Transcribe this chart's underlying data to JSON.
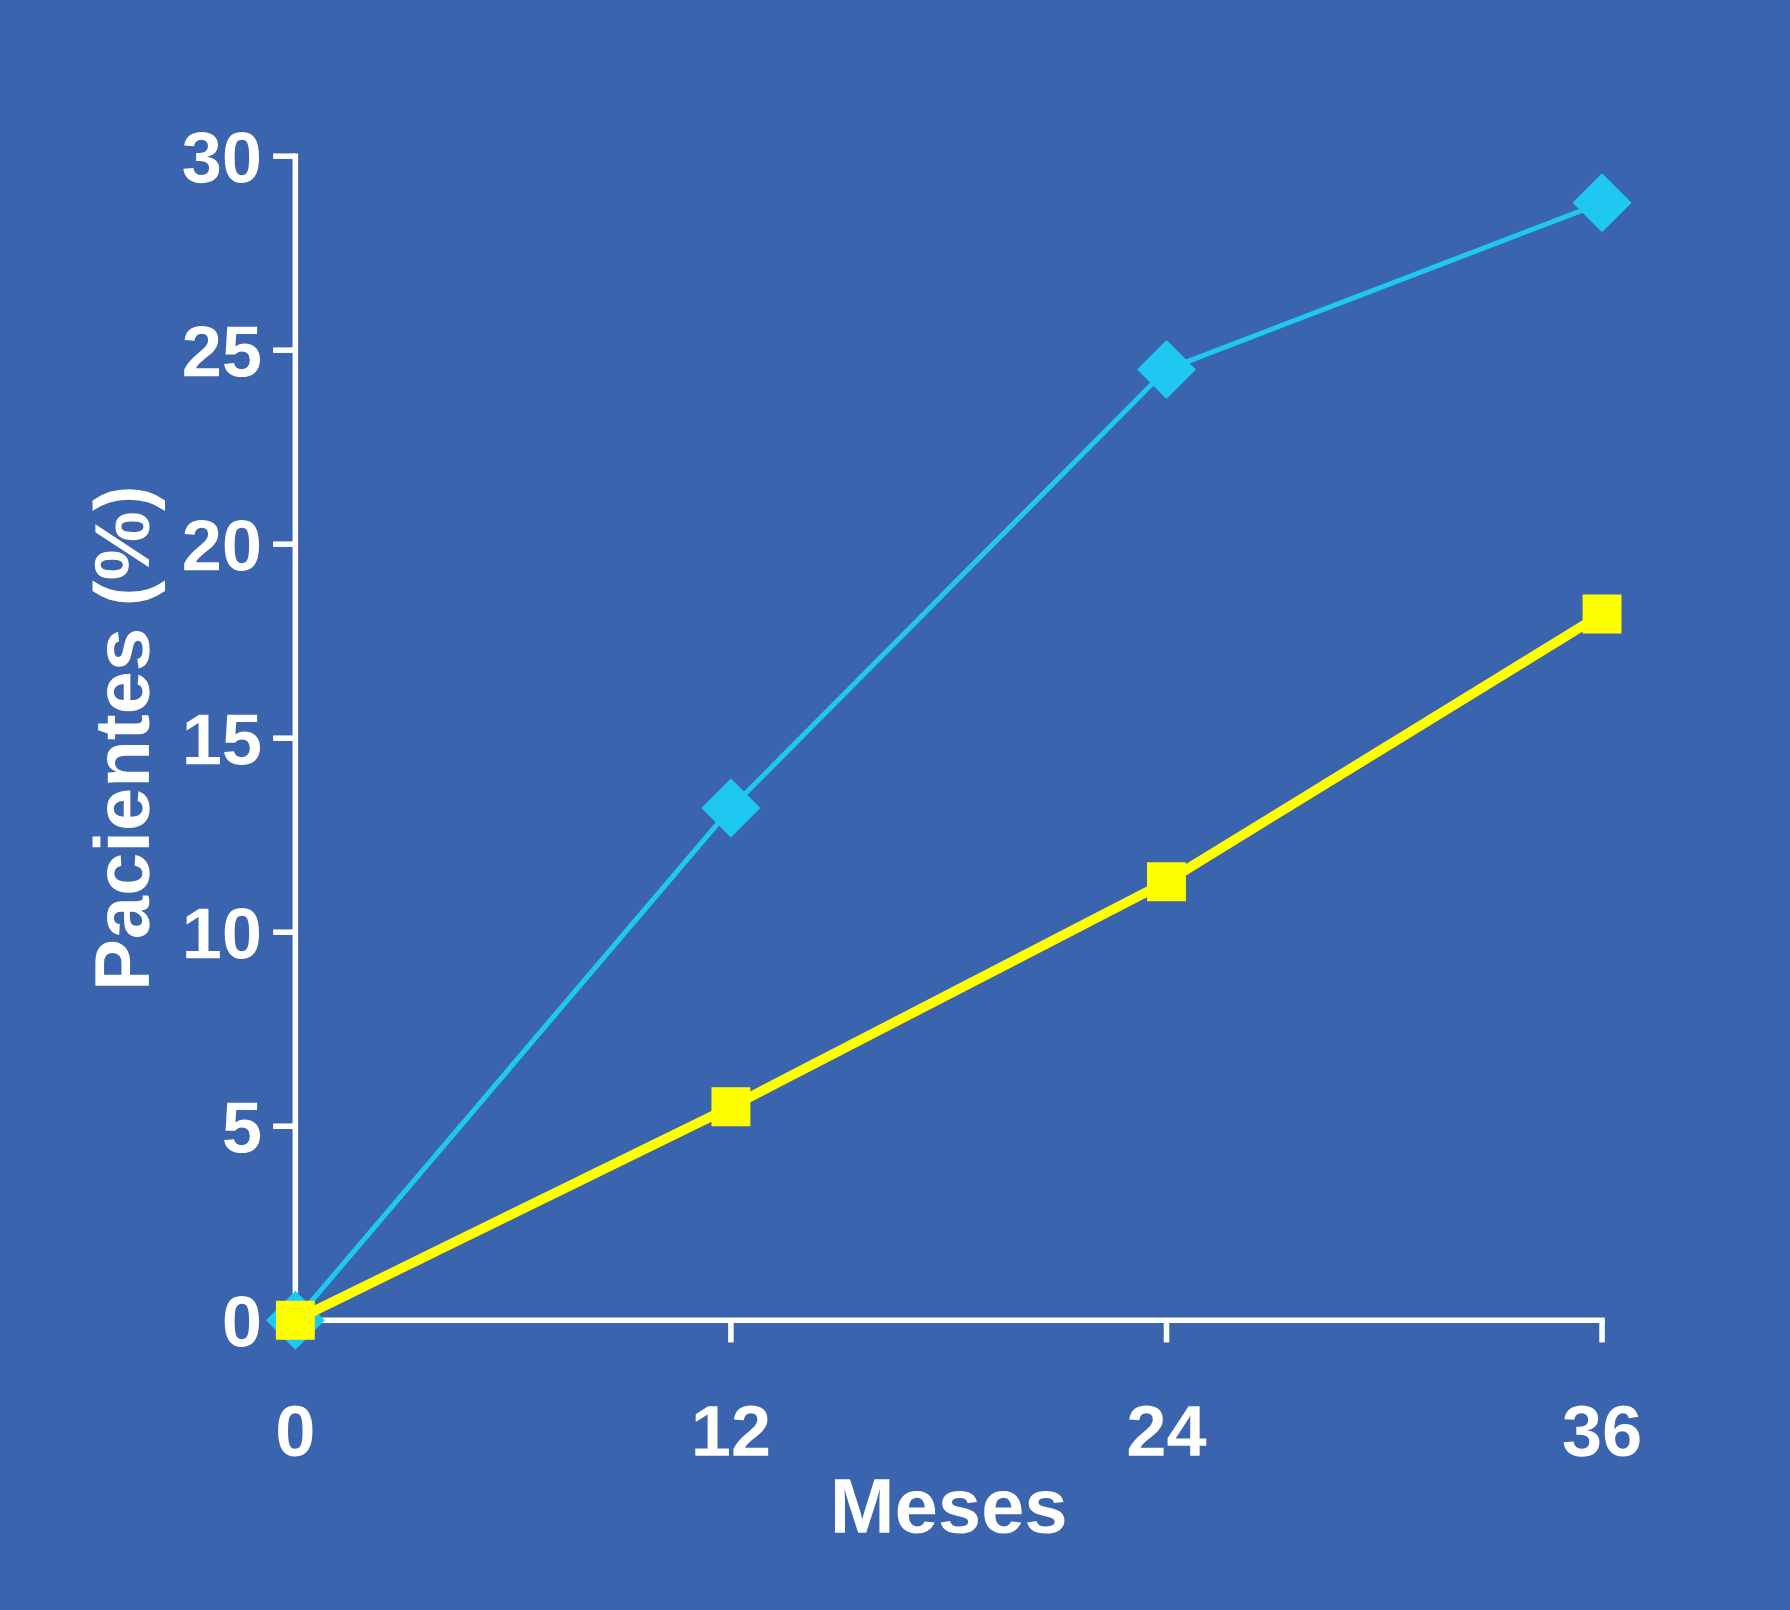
{
  "chart_data": {
    "type": "line",
    "xlabel": "Meses",
    "ylabel": "Pacientes (%)",
    "x": [
      0,
      12,
      24,
      36
    ],
    "series": [
      {
        "color": "#1ec8f0",
        "values": [
          0,
          13.2,
          24.5,
          28.8
        ],
        "marker": "diamond"
      },
      {
        "color": "#ffff00",
        "values": [
          0,
          5.5,
          11.3,
          18.2
        ],
        "marker": "square"
      }
    ],
    "xlim": [
      0,
      36
    ],
    "xticks": [
      0,
      12,
      24,
      36
    ],
    "ylim": [
      0,
      30
    ],
    "yticks": [
      0,
      5,
      10,
      15,
      20,
      25,
      30
    ],
    "grid": false,
    "line_style": "solid"
  }
}
